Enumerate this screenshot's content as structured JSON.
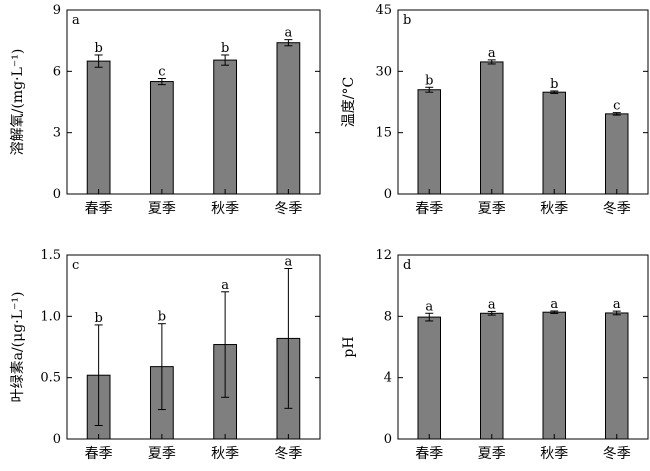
{
  "chart_data": [
    {
      "type": "bar",
      "panel": "a",
      "categories": [
        "春季",
        "夏季",
        "秋季",
        "冬季"
      ],
      "values": [
        6.5,
        5.5,
        6.55,
        7.4
      ],
      "errors": [
        0.3,
        0.15,
        0.25,
        0.15
      ],
      "labels": [
        "b",
        "c",
        "b",
        "a"
      ],
      "ylabel": "溶解氧/(mg·L⁻¹)",
      "ylim": [
        0,
        9
      ],
      "yticks": [
        "0",
        "3",
        "6",
        "9"
      ]
    },
    {
      "type": "bar",
      "panel": "b",
      "categories": [
        "春季",
        "夏季",
        "秋季",
        "冬季"
      ],
      "values": [
        25.5,
        32.3,
        24.9,
        19.6
      ],
      "errors": [
        0.6,
        0.5,
        0.3,
        0.3
      ],
      "labels": [
        "b",
        "a",
        "b",
        "c"
      ],
      "ylabel": "温度/°C",
      "ylim": [
        0,
        45
      ],
      "yticks": [
        "0",
        "15",
        "30",
        "45"
      ]
    },
    {
      "type": "bar",
      "panel": "c",
      "categories": [
        "春季",
        "夏季",
        "秋季",
        "冬季"
      ],
      "values": [
        0.52,
        0.59,
        0.77,
        0.82
      ],
      "errors": [
        0.41,
        0.35,
        0.43,
        0.57
      ],
      "labels": [
        "b",
        "b",
        "a",
        "a"
      ],
      "ylabel": "叶绿素a/(μg·L⁻¹)",
      "ylim": [
        0,
        1.5
      ],
      "yticks": [
        "0",
        "0.5",
        "1.0",
        "1.5"
      ]
    },
    {
      "type": "bar",
      "panel": "d",
      "categories": [
        "春季",
        "夏季",
        "秋季",
        "冬季"
      ],
      "values": [
        7.95,
        8.2,
        8.27,
        8.22
      ],
      "errors": [
        0.25,
        0.12,
        0.08,
        0.12
      ],
      "labels": [
        "a",
        "a",
        "a",
        "a"
      ],
      "ylabel": "pH",
      "ylim": [
        0,
        12
      ],
      "yticks": [
        "0",
        "4",
        "8",
        "12"
      ]
    }
  ]
}
